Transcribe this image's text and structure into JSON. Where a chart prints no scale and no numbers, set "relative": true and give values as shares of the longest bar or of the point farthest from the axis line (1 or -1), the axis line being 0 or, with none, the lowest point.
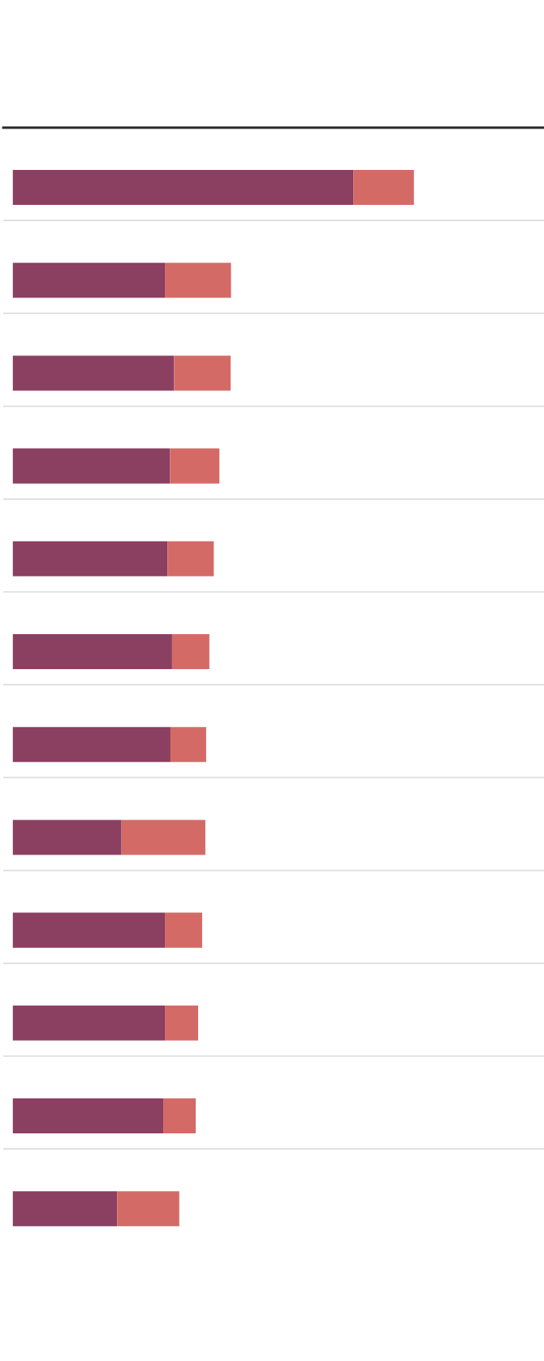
{
  "chart_data": {
    "type": "bar",
    "orientation": "horizontal",
    "stacked": true,
    "relative": true,
    "grid": "y",
    "categories": [
      null,
      null,
      null,
      null,
      null,
      null,
      null,
      null,
      null,
      null,
      null,
      null
    ],
    "series": [
      {
        "color": "#8b3f61",
        "values": [
          0.849,
          0.379,
          0.402,
          0.392,
          0.386,
          0.397,
          0.393,
          0.271,
          0.379,
          0.379,
          0.375,
          0.26
        ]
      },
      {
        "color": "#d46a66",
        "values": [
          0.151,
          0.165,
          0.141,
          0.123,
          0.115,
          0.093,
          0.089,
          0.209,
          0.093,
          0.083,
          0.081,
          0.155
        ]
      }
    ]
  }
}
